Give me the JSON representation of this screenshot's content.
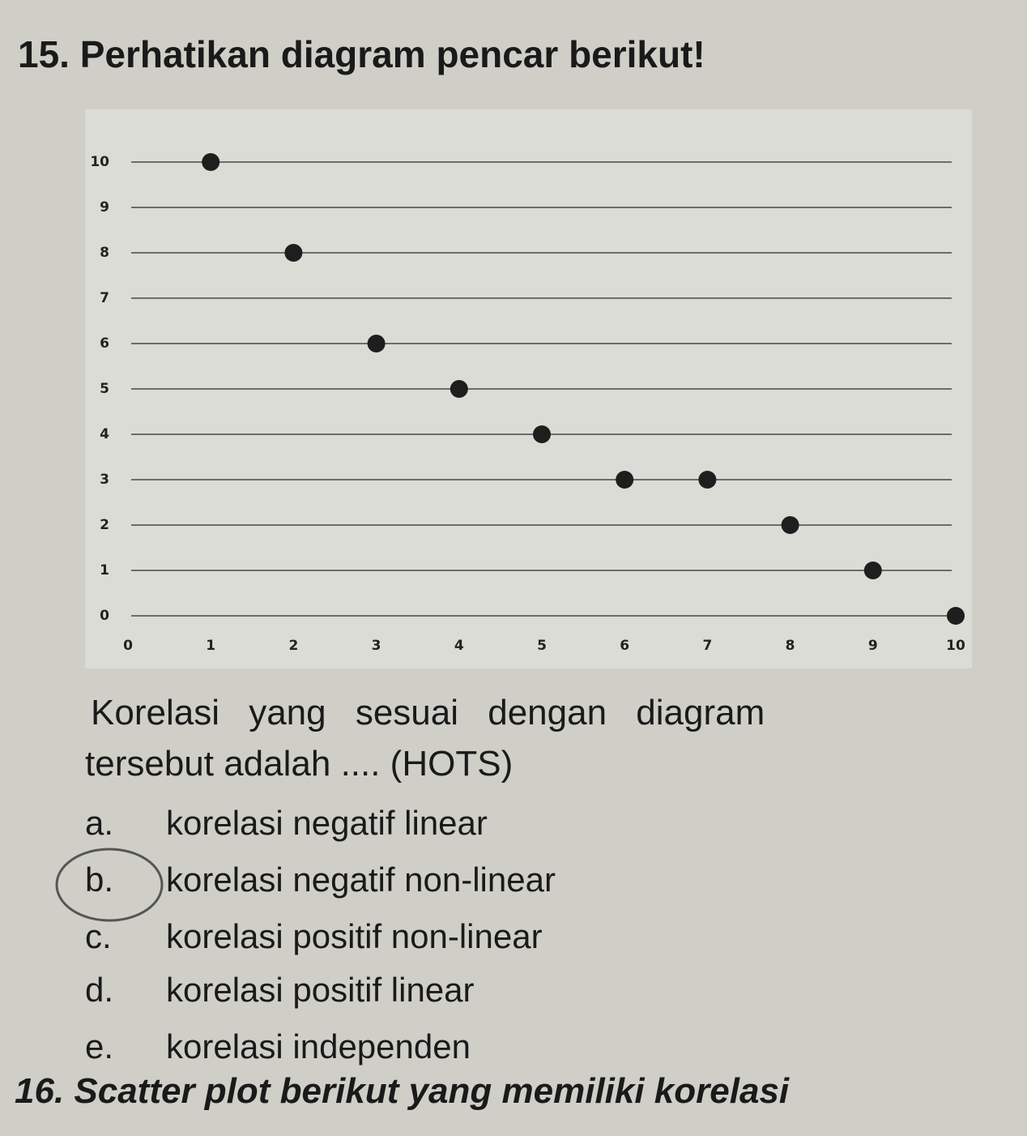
{
  "title": "15. Perhatikan diagram pencar berikut!",
  "chart_data": {
    "type": "scatter",
    "x": [
      1,
      2,
      3,
      4,
      5,
      6,
      7,
      8,
      9,
      10
    ],
    "values": [
      10,
      8,
      6,
      5,
      4,
      3,
      3,
      2,
      1,
      0
    ],
    "color": "#1e1e1e",
    "xlim": [
      0,
      10
    ],
    "ylim": [
      0,
      10
    ],
    "xticks": [
      0,
      1,
      2,
      3,
      4,
      5,
      6,
      7,
      8,
      9,
      10
    ],
    "yticks": [
      0,
      1,
      2,
      3,
      4,
      5,
      6,
      7,
      8,
      9,
      10
    ],
    "grid": true
  },
  "question": [
    "Korelasi yang sesuai dengan diagram",
    "tersebut adalah .... (HOTS)"
  ],
  "options": [
    {
      "letter": "a.",
      "text": "korelasi negatif linear"
    },
    {
      "letter": "b.",
      "text": "korelasi negatif non-linear"
    },
    {
      "letter": "c.",
      "text": "korelasi positif non-linear"
    },
    {
      "letter": "d.",
      "text": "korelasi positif linear"
    },
    {
      "letter": "e.",
      "text": "korelasi independen"
    }
  ],
  "next_question": "16. Scatter plot berikut yang memiliki korelasi"
}
